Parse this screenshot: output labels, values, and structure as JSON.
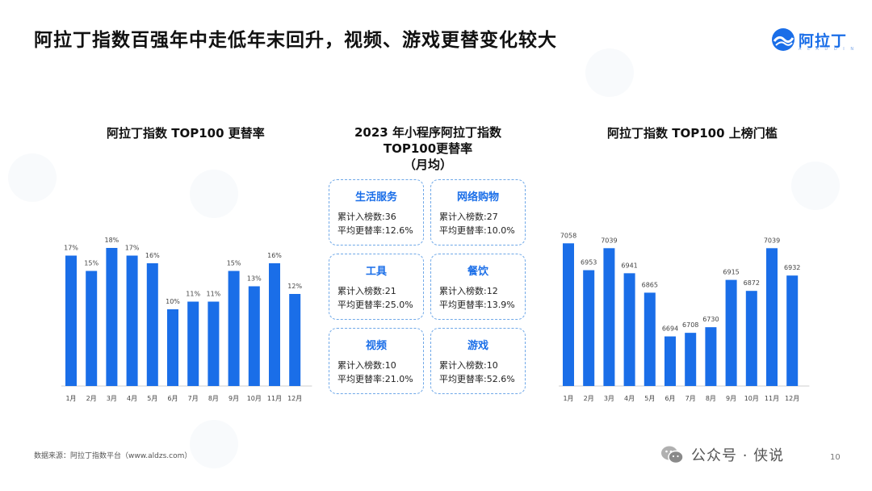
{
  "header": {
    "title": "阿拉丁指数百强年中走低年末回升，视频、游戏更替变化较大",
    "logo_text": "阿拉丁",
    "logo_sub": "A L A D D I N",
    "colors": {
      "accent": "#1a6ee8",
      "bar": "#1a6ee8"
    }
  },
  "left_chart": {
    "title": "阿拉丁指数 TOP100 更替率"
  },
  "right_chart": {
    "title": "阿拉丁指数 TOP100 上榜门槛"
  },
  "center": {
    "title_line1": "2023 年小程序阿拉丁指数",
    "title_line2": "TOP100更替率",
    "title_line3": "（月均）",
    "cards": [
      {
        "name": "生活服务",
        "line1": "累计入榜数:36",
        "line2": "平均更替率:12.6%"
      },
      {
        "name": "网络购物",
        "line1": "累计入榜数:27",
        "line2": "平均更替率:10.0%"
      },
      {
        "name": "工具",
        "line1": "累计入榜数:21",
        "line2": "平均更替率:25.0%"
      },
      {
        "name": "餐饮",
        "line1": "累计入榜数:12",
        "line2": "平均更替率:13.9%"
      },
      {
        "name": "视频",
        "line1": "累计入榜数:10",
        "line2": "平均更替率:21.0%"
      },
      {
        "name": "游戏",
        "line1": "累计入榜数:10",
        "line2": "平均更替率:52.6%"
      }
    ]
  },
  "footer": {
    "source": "数据来源：阿拉丁指数平台（www.aldzs.com）",
    "wechat": "公众号 · 侠说",
    "page": "10"
  },
  "chart_data": [
    {
      "type": "bar",
      "title": "阿拉丁指数 TOP100 更替率",
      "categories": [
        "1月",
        "2月",
        "3月",
        "4月",
        "5月",
        "6月",
        "7月",
        "8月",
        "9月",
        "10月",
        "11月",
        "12月"
      ],
      "values": [
        17,
        15,
        18,
        17,
        16,
        10,
        11,
        11,
        15,
        13,
        16,
        12
      ],
      "labels": [
        "17%",
        "15%",
        "18%",
        "17%",
        "16%",
        "10%",
        "11%",
        "11%",
        "15%",
        "13%",
        "16%",
        "12%"
      ],
      "ylim": [
        0,
        20
      ],
      "grid": false
    },
    {
      "type": "bar",
      "title": "阿拉丁指数 TOP100 上榜门槛",
      "categories": [
        "1月",
        "2月",
        "3月",
        "4月",
        "5月",
        "6月",
        "7月",
        "8月",
        "9月",
        "10月",
        "11月",
        "12月"
      ],
      "values": [
        7058,
        6953,
        7039,
        6941,
        6865,
        6694,
        6708,
        6730,
        6915,
        6872,
        7039,
        6932
      ],
      "labels": [
        "7058",
        "6953",
        "7039",
        "6941",
        "6865",
        "6694",
        "6708",
        "6730",
        "6915",
        "6872",
        "7039",
        "6932"
      ],
      "ylim": [
        6500,
        7100
      ],
      "grid": false
    }
  ]
}
